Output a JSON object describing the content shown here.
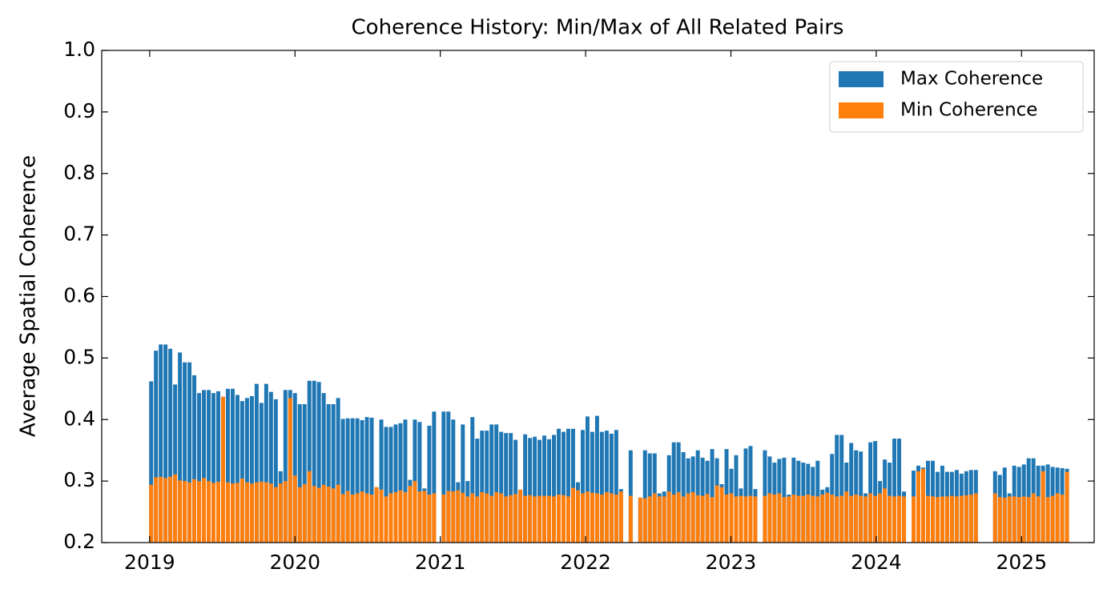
{
  "chart_data": {
    "type": "bar",
    "title": "Coherence History: Min/Max of All Related Pairs",
    "y_label": "Average Spatial Coherence",
    "xlim": [
      2018.67,
      2025.5
    ],
    "xticks": [
      2019,
      2020,
      2021,
      2022,
      2023,
      2024,
      2025
    ],
    "ylim": [
      0.2,
      1
    ],
    "yticks": [
      0.2,
      0.3,
      0.4,
      0.5,
      0.6,
      0.7,
      0.8,
      0.9,
      {
        "value": 1,
        "label": "1.0"
      }
    ],
    "legend": "upper right",
    "x": [
      2019.01,
      2019.043,
      2019.076,
      2019.109,
      2019.142,
      2019.175,
      2019.208,
      2019.241,
      2019.274,
      2019.307,
      2019.34,
      2019.373,
      2019.406,
      2019.439,
      2019.472,
      2019.505,
      2019.538,
      2019.571,
      2019.604,
      2019.637,
      2019.67,
      2019.703,
      2019.736,
      2019.769,
      2019.802,
      2019.835,
      2019.868,
      2019.901,
      2019.934,
      2019.967,
      2020.0,
      2020.033,
      2020.066,
      2020.099,
      2020.132,
      2020.165,
      2020.198,
      2020.231,
      2020.264,
      2020.297,
      2020.33,
      2020.363,
      2020.396,
      2020.429,
      2020.462,
      2020.495,
      2020.528,
      2020.561,
      2020.594,
      2020.627,
      2020.66,
      2020.693,
      2020.726,
      2020.759,
      2020.792,
      2020.825,
      2020.858,
      2020.891,
      2020.924,
      2020.957,
      2021.023,
      2021.056,
      2021.089,
      2021.122,
      2021.155,
      2021.188,
      2021.221,
      2021.254,
      2021.287,
      2021.32,
      2021.353,
      2021.386,
      2021.419,
      2021.452,
      2021.485,
      2021.518,
      2021.551,
      2021.584,
      2021.617,
      2021.65,
      2021.683,
      2021.716,
      2021.749,
      2021.782,
      2021.815,
      2021.848,
      2021.881,
      2021.914,
      2021.947,
      2021.98,
      2022.013,
      2022.046,
      2022.079,
      2022.112,
      2022.145,
      2022.178,
      2022.211,
      2022.244,
      2022.31,
      2022.376,
      2022.409,
      2022.442,
      2022.475,
      2022.508,
      2022.541,
      2022.574,
      2022.607,
      2022.64,
      2022.673,
      2022.706,
      2022.739,
      2022.772,
      2022.805,
      2022.838,
      2022.871,
      2022.904,
      2022.937,
      2022.97,
      2023.003,
      2023.036,
      2023.069,
      2023.102,
      2023.135,
      2023.168,
      2023.234,
      2023.267,
      2023.3,
      2023.333,
      2023.366,
      2023.399,
      2023.432,
      2023.465,
      2023.498,
      2023.531,
      2023.564,
      2023.597,
      2023.63,
      2023.663,
      2023.696,
      2023.729,
      2023.762,
      2023.795,
      2023.828,
      2023.861,
      2023.894,
      2023.927,
      2023.96,
      2023.993,
      2024.026,
      2024.059,
      2024.092,
      2024.125,
      2024.158,
      2024.191,
      2024.257,
      2024.29,
      2024.323,
      2024.356,
      2024.389,
      2024.422,
      2024.455,
      2024.488,
      2024.521,
      2024.554,
      2024.587,
      2024.62,
      2024.653,
      2024.686,
      2024.818,
      2024.851,
      2024.884,
      2024.917,
      2024.95,
      2024.983,
      2025.016,
      2025.049,
      2025.082,
      2025.115,
      2025.148,
      2025.181,
      2025.214,
      2025.247,
      2025.28,
      2025.313
    ],
    "series": [
      {
        "name": "Max Coherence",
        "color": "#1f77b4",
        "values": [
          0.462,
          0.512,
          0.522,
          0.522,
          0.515,
          0.457,
          0.509,
          0.493,
          0.493,
          0.472,
          0.443,
          0.448,
          0.448,
          0.443,
          0.446,
          0.437,
          0.45,
          0.45,
          0.44,
          0.43,
          0.435,
          0.438,
          0.458,
          0.427,
          0.458,
          0.445,
          0.433,
          0.316,
          0.448,
          0.448,
          0.443,
          0.425,
          0.425,
          0.463,
          0.463,
          0.461,
          0.443,
          0.425,
          0.425,
          0.435,
          0.401,
          0.402,
          0.402,
          0.402,
          0.399,
          0.404,
          0.403,
          0.29,
          0.4,
          0.388,
          0.388,
          0.392,
          0.394,
          0.4,
          0.302,
          0.4,
          0.396,
          0.288,
          0.39,
          0.413,
          0.413,
          0.413,
          0.4,
          0.298,
          0.392,
          0.3,
          0.404,
          0.369,
          0.382,
          0.382,
          0.392,
          0.392,
          0.38,
          0.378,
          0.378,
          0.367,
          0.286,
          0.376,
          0.37,
          0.372,
          0.367,
          0.374,
          0.368,
          0.375,
          0.385,
          0.38,
          0.385,
          0.385,
          0.298,
          0.383,
          0.405,
          0.38,
          0.406,
          0.38,
          0.382,
          0.377,
          0.383,
          0.287,
          0.35,
          0.273,
          0.35,
          0.345,
          0.345,
          0.28,
          0.283,
          0.342,
          0.363,
          0.363,
          0.347,
          0.337,
          0.34,
          0.35,
          0.338,
          0.333,
          0.352,
          0.337,
          0.295,
          0.352,
          0.32,
          0.342,
          0.288,
          0.353,
          0.357,
          0.287,
          0.35,
          0.34,
          0.33,
          0.336,
          0.338,
          0.278,
          0.338,
          0.333,
          0.33,
          0.328,
          0.323,
          0.333,
          0.286,
          0.29,
          0.344,
          0.375,
          0.375,
          0.33,
          0.362,
          0.35,
          0.348,
          0.28,
          0.363,
          0.365,
          0.3,
          0.335,
          0.33,
          0.369,
          0.369,
          0.283,
          0.317,
          0.325,
          0.322,
          0.333,
          0.333,
          0.315,
          0.325,
          0.315,
          0.315,
          0.318,
          0.312,
          0.316,
          0.318,
          0.318,
          0.316,
          0.31,
          0.322,
          0.28,
          0.325,
          0.323,
          0.327,
          0.337,
          0.337,
          0.325,
          0.325,
          0.327,
          0.323,
          0.322,
          0.321,
          0.32
        ]
      },
      {
        "name": "Min Coherence",
        "color": "#ff7f0e",
        "values": [
          0.294,
          0.306,
          0.307,
          0.305,
          0.307,
          0.311,
          0.301,
          0.3,
          0.298,
          0.303,
          0.3,
          0.305,
          0.3,
          0.297,
          0.299,
          0.437,
          0.298,
          0.296,
          0.297,
          0.304,
          0.298,
          0.296,
          0.298,
          0.299,
          0.298,
          0.296,
          0.29,
          0.296,
          0.3,
          0.435,
          0.309,
          0.29,
          0.295,
          0.316,
          0.292,
          0.289,
          0.294,
          0.291,
          0.288,
          0.294,
          0.279,
          0.284,
          0.278,
          0.28,
          0.283,
          0.28,
          0.278,
          0.29,
          0.286,
          0.275,
          0.28,
          0.282,
          0.285,
          0.282,
          0.292,
          0.3,
          0.283,
          0.284,
          0.278,
          0.28,
          0.278,
          0.284,
          0.283,
          0.285,
          0.281,
          0.275,
          0.28,
          0.275,
          0.282,
          0.28,
          0.276,
          0.282,
          0.28,
          0.275,
          0.277,
          0.279,
          0.286,
          0.276,
          0.277,
          0.275,
          0.276,
          0.276,
          0.276,
          0.275,
          0.278,
          0.277,
          0.275,
          0.289,
          0.285,
          0.28,
          0.283,
          0.281,
          0.28,
          0.278,
          0.282,
          0.28,
          0.278,
          0.283,
          0.276,
          0.273,
          0.272,
          0.275,
          0.28,
          0.275,
          0.275,
          0.283,
          0.278,
          0.282,
          0.275,
          0.28,
          0.282,
          0.277,
          0.276,
          0.279,
          0.274,
          0.293,
          0.29,
          0.278,
          0.28,
          0.275,
          0.276,
          0.275,
          0.276,
          0.275,
          0.276,
          0.28,
          0.278,
          0.28,
          0.274,
          0.275,
          0.278,
          0.276,
          0.276,
          0.278,
          0.276,
          0.275,
          0.278,
          0.281,
          0.278,
          0.275,
          0.276,
          0.283,
          0.276,
          0.278,
          0.276,
          0.275,
          0.28,
          0.276,
          0.28,
          0.288,
          0.276,
          0.275,
          0.276,
          0.275,
          0.275,
          0.316,
          0.32,
          0.276,
          0.275,
          0.274,
          0.275,
          0.275,
          0.276,
          0.275,
          0.276,
          0.277,
          0.278,
          0.28,
          0.28,
          0.274,
          0.273,
          0.275,
          0.275,
          0.274,
          0.275,
          0.274,
          0.28,
          0.275,
          0.316,
          0.274,
          0.276,
          0.28,
          0.278,
          0.315
        ]
      }
    ]
  }
}
